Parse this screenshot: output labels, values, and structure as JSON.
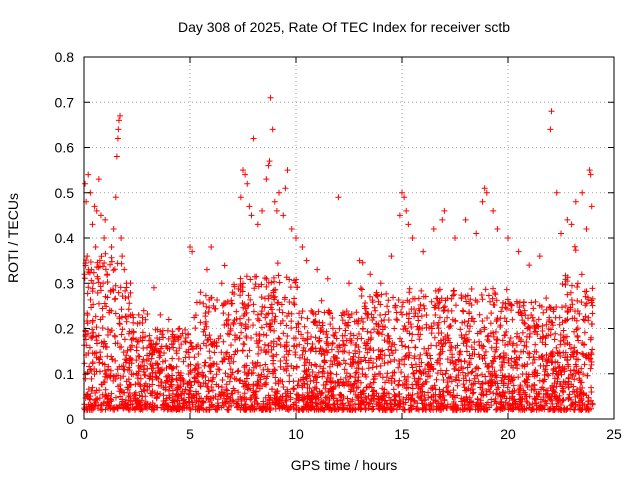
{
  "chart_data": {
    "type": "scatter",
    "title": "Day 308 of 2025, Rate Of TEC Index for receiver sctb",
    "xlabel": "GPS time / hours",
    "ylabel": "ROTI / TECUs",
    "xlim": [
      0,
      25
    ],
    "ylim": [
      0,
      0.8
    ],
    "xticks": [
      "0",
      "5",
      "10",
      "15",
      "20",
      "25"
    ],
    "yticks": [
      "0",
      "0.1",
      "0.2",
      "0.3",
      "0.4",
      "0.5",
      "0.6",
      "0.7",
      "0.8"
    ],
    "grid": true,
    "marker": "plus",
    "colors": {
      "series": "#ff0000",
      "grid": "#a0a0a0"
    },
    "series": [
      {
        "points": [
          [
            0.05,
            0.52
          ],
          [
            0.1,
            0.48
          ],
          [
            0.2,
            0.54
          ],
          [
            0.3,
            0.5
          ],
          [
            0.4,
            0.43
          ],
          [
            0.5,
            0.47
          ],
          [
            0.6,
            0.46
          ],
          [
            0.7,
            0.53
          ],
          [
            0.8,
            0.45
          ],
          [
            0.95,
            0.4
          ],
          [
            1.0,
            0.44
          ],
          [
            0.15,
            0.36
          ],
          [
            0.35,
            0.33
          ],
          [
            0.55,
            0.38
          ],
          [
            0.75,
            0.35
          ],
          [
            0.9,
            0.3
          ],
          [
            1.1,
            0.32
          ],
          [
            1.3,
            0.38
          ],
          [
            1.4,
            0.42
          ],
          [
            1.5,
            0.49
          ],
          [
            1.55,
            0.58
          ],
          [
            1.6,
            0.62
          ],
          [
            1.62,
            0.64
          ],
          [
            1.65,
            0.66
          ],
          [
            1.7,
            0.67
          ],
          [
            1.75,
            0.4
          ],
          [
            1.8,
            0.36
          ],
          [
            1.9,
            0.33
          ],
          [
            2.0,
            0.3
          ],
          [
            2.1,
            0.27
          ],
          [
            3.3,
            0.29
          ],
          [
            3.6,
            0.23
          ],
          [
            4.0,
            0.22
          ],
          [
            4.5,
            0.2
          ],
          [
            5.0,
            0.38
          ],
          [
            5.1,
            0.37
          ],
          [
            5.5,
            0.28
          ],
          [
            5.8,
            0.33
          ],
          [
            6.0,
            0.38
          ],
          [
            6.5,
            0.3
          ],
          [
            7.0,
            0.28
          ],
          [
            7.4,
            0.49
          ],
          [
            7.5,
            0.55
          ],
          [
            7.6,
            0.54
          ],
          [
            7.7,
            0.52
          ],
          [
            7.8,
            0.47
          ],
          [
            7.9,
            0.45
          ],
          [
            8.0,
            0.62
          ],
          [
            8.2,
            0.43
          ],
          [
            8.4,
            0.46
          ],
          [
            8.6,
            0.53
          ],
          [
            8.7,
            0.56
          ],
          [
            8.75,
            0.57
          ],
          [
            8.8,
            0.71
          ],
          [
            8.9,
            0.64
          ],
          [
            9.0,
            0.48
          ],
          [
            9.1,
            0.46
          ],
          [
            9.2,
            0.5
          ],
          [
            9.4,
            0.45
          ],
          [
            9.5,
            0.51
          ],
          [
            9.6,
            0.55
          ],
          [
            9.8,
            0.42
          ],
          [
            10.0,
            0.4
          ],
          [
            10.3,
            0.38
          ],
          [
            10.5,
            0.35
          ],
          [
            11.0,
            0.33
          ],
          [
            11.5,
            0.31
          ],
          [
            12.0,
            0.49
          ],
          [
            12.5,
            0.3
          ],
          [
            13.0,
            0.35
          ],
          [
            13.5,
            0.32
          ],
          [
            14.0,
            0.3
          ],
          [
            14.5,
            0.36
          ],
          [
            14.9,
            0.45
          ],
          [
            15.0,
            0.5
          ],
          [
            15.1,
            0.49
          ],
          [
            15.2,
            0.46
          ],
          [
            15.3,
            0.43
          ],
          [
            15.5,
            0.4
          ],
          [
            16.0,
            0.37
          ],
          [
            16.5,
            0.42
          ],
          [
            16.9,
            0.44
          ],
          [
            17.0,
            0.46
          ],
          [
            17.5,
            0.4
          ],
          [
            18.0,
            0.44
          ],
          [
            18.5,
            0.41
          ],
          [
            18.8,
            0.48
          ],
          [
            18.9,
            0.51
          ],
          [
            19.0,
            0.5
          ],
          [
            19.3,
            0.46
          ],
          [
            19.5,
            0.42
          ],
          [
            20.0,
            0.4
          ],
          [
            20.5,
            0.37
          ],
          [
            21.0,
            0.34
          ],
          [
            21.5,
            0.36
          ],
          [
            22.0,
            0.64
          ],
          [
            22.05,
            0.68
          ],
          [
            22.3,
            0.5
          ],
          [
            22.5,
            0.41
          ],
          [
            22.8,
            0.44
          ],
          [
            23.0,
            0.43
          ],
          [
            23.2,
            0.48
          ],
          [
            23.5,
            0.5
          ],
          [
            23.7,
            0.42
          ],
          [
            23.85,
            0.55
          ],
          [
            23.9,
            0.54
          ],
          [
            23.95,
            0.47
          ]
        ]
      }
    ]
  }
}
